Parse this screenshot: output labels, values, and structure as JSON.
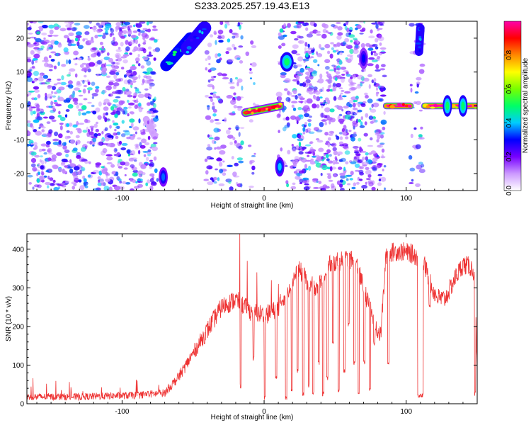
{
  "title": "S233.2025.257.19.43.E13",
  "chart_data": [
    {
      "type": "heatmap",
      "name": "spectrogram",
      "xlabel": "Height of straight line (km)",
      "ylabel": "Frequency (Hz)",
      "xlim": [
        -167,
        150
      ],
      "ylim": [
        -25,
        25
      ],
      "xticks": [
        -100,
        0,
        100
      ],
      "yticks": [
        -20,
        -10,
        0,
        10,
        20
      ],
      "xtick_labels": [
        "-100",
        "0",
        "100"
      ],
      "ytick_labels": [
        "-20",
        "-10",
        "0",
        "10",
        "20"
      ],
      "colorbar": {
        "label": "Normalized spectral amplitude",
        "range": [
          0,
          1
        ],
        "ticks": [
          0.0,
          0.2,
          0.4,
          0.6,
          0.8
        ],
        "tick_labels": [
          "0.0",
          "0.2",
          "0.4",
          "0.6",
          "0.8"
        ],
        "colormap": [
          "#ffffff",
          "#cc99ff",
          "#7700ff",
          "#0000ff",
          "#00ccff",
          "#00ff66",
          "#77ff00",
          "#ffff00",
          "#ff8800",
          "#ff0000",
          "#ff00aa"
        ]
      },
      "noise_regions": [
        {
          "x": [
            -167,
            -75
          ],
          "y": [
            -25,
            25
          ],
          "density": "high"
        },
        {
          "x": [
            -41,
            -15
          ],
          "y": [
            -25,
            25
          ],
          "density": "medium"
        },
        {
          "x": [
            -12,
            -5
          ],
          "y": [
            -25,
            25
          ],
          "density": "low"
        },
        {
          "x": [
            10,
            18
          ],
          "y": [
            -25,
            25
          ],
          "density": "medium"
        },
        {
          "x": [
            20,
            45
          ],
          "y": [
            -25,
            25
          ],
          "density": "high"
        },
        {
          "x": [
            45,
            85
          ],
          "y": [
            -25,
            25
          ],
          "density": "high"
        },
        {
          "x": [
            102,
            108
          ],
          "y": [
            -25,
            25
          ],
          "density": "low"
        },
        {
          "x": [
            108,
            112
          ],
          "y": [
            -25,
            25
          ],
          "density": "medium"
        }
      ],
      "features": [
        {
          "type": "streak",
          "from": [
            -69,
            12
          ],
          "to": [
            -52,
            20
          ],
          "width": 3.5,
          "amplitude": 0.5
        },
        {
          "type": "streak",
          "from": [
            -54,
            17
          ],
          "to": [
            -42,
            23
          ],
          "width": 4,
          "amplitude": 0.45
        },
        {
          "type": "streak",
          "from": [
            -83,
            -4
          ],
          "to": [
            -77,
            -9
          ],
          "width": 2,
          "amplitude": 0.15
        },
        {
          "type": "blob",
          "at": [
            -71,
            -21
          ],
          "size": [
            2,
            1.8
          ],
          "amplitude": 0.35
        },
        {
          "type": "streak",
          "from": [
            -13,
            -2
          ],
          "to": [
            11,
            0
          ],
          "width": 2.6,
          "amplitude": 0.95
        },
        {
          "type": "blob",
          "at": [
            16,
            13
          ],
          "size": [
            3,
            1.8
          ],
          "amplitude": 0.5
        },
        {
          "type": "blob",
          "at": [
            11,
            -18
          ],
          "size": [
            2,
            1.8
          ],
          "amplitude": 0.4
        },
        {
          "type": "blob",
          "at": [
            70,
            14
          ],
          "size": [
            2,
            2
          ],
          "amplitude": 0.3
        },
        {
          "type": "streak",
          "from": [
            86,
            0
          ],
          "to": [
            103,
            0
          ],
          "width": 2,
          "amplitude": 1.0
        },
        {
          "type": "streak",
          "from": [
            113,
            0
          ],
          "to": [
            149,
            0
          ],
          "width": 2,
          "amplitude": 1.0
        },
        {
          "type": "blob",
          "at": [
            129,
            0
          ],
          "size": [
            2,
            2
          ],
          "amplitude": 0.5
        },
        {
          "type": "blob",
          "at": [
            140,
            0
          ],
          "size": [
            2,
            2
          ],
          "amplitude": 0.5
        },
        {
          "type": "streak",
          "from": [
            109,
            16
          ],
          "to": [
            110,
            23
          ],
          "width": 2.5,
          "amplitude": 0.45
        }
      ]
    },
    {
      "type": "line",
      "name": "snr",
      "xlabel": "Height of straight line (km)",
      "ylabel": "SNR (10 * v/v)",
      "xlim": [
        -167,
        150
      ],
      "ylim": [
        0,
        440
      ],
      "xticks": [
        -100,
        0,
        100
      ],
      "yticks": [
        0,
        100,
        200,
        300,
        400
      ],
      "xtick_labels": [
        "-100",
        "0",
        "100"
      ],
      "ytick_labels": [
        "0",
        "100",
        "200",
        "300",
        "400"
      ],
      "color": "#ee3333",
      "x": [
        -167,
        -150,
        -130,
        -110,
        -90,
        -70,
        -60,
        -50,
        -40,
        -30,
        -20,
        -10,
        0,
        5,
        10,
        20,
        25,
        30,
        35,
        40,
        45,
        50,
        55,
        60,
        65,
        70,
        75,
        80,
        82,
        86,
        95,
        103,
        108,
        112,
        118,
        122,
        127,
        130,
        135,
        140,
        145,
        148,
        150
      ],
      "y": [
        18,
        18,
        18,
        20,
        22,
        28,
        70,
        130,
        190,
        250,
        270,
        240,
        230,
        235,
        250,
        320,
        345,
        320,
        300,
        320,
        360,
        365,
        370,
        375,
        360,
        300,
        240,
        190,
        175,
        390,
        395,
        390,
        380,
        370,
        300,
        275,
        270,
        290,
        330,
        360,
        355,
        340,
        85
      ],
      "noise_amplitude": 22,
      "dips": [
        {
          "x": [
            108,
            112
          ],
          "depth_to": 15
        },
        {
          "x": [
            -17,
            -16
          ],
          "depth_to": 40
        },
        {
          "x": [
            -8,
            -7
          ],
          "depth_to": 110
        },
        {
          "x": [
            0,
            1
          ],
          "depth_to": 10
        },
        {
          "x": [
            8,
            9
          ],
          "depth_to": 60
        },
        {
          "x": [
            15,
            16
          ],
          "depth_to": 10
        },
        {
          "x": [
            19,
            20
          ],
          "depth_to": 30
        },
        {
          "x": [
            23,
            24
          ],
          "depth_to": 80
        },
        {
          "x": [
            27,
            28
          ],
          "depth_to": 20
        },
        {
          "x": [
            31,
            32
          ],
          "depth_to": 40
        },
        {
          "x": [
            34,
            35
          ],
          "depth_to": 20
        },
        {
          "x": [
            38,
            39
          ],
          "depth_to": 100
        },
        {
          "x": [
            41,
            42
          ],
          "depth_to": 20
        },
        {
          "x": [
            44,
            45
          ],
          "depth_to": 60
        },
        {
          "x": [
            48,
            49
          ],
          "depth_to": 150
        },
        {
          "x": [
            52,
            53
          ],
          "depth_to": 30
        },
        {
          "x": [
            56,
            57
          ],
          "depth_to": 80
        },
        {
          "x": [
            59,
            60
          ],
          "depth_to": 200
        },
        {
          "x": [
            63,
            64
          ],
          "depth_to": 100
        },
        {
          "x": [
            66,
            67
          ],
          "depth_to": 20
        },
        {
          "x": [
            70,
            71
          ],
          "depth_to": 100
        },
        {
          "x": [
            74,
            75
          ],
          "depth_to": 30
        },
        {
          "x": [
            77,
            78
          ],
          "depth_to": 150
        },
        {
          "x": [
            87,
            88
          ],
          "depth_to": 100
        },
        {
          "x": [
            116,
            117
          ],
          "depth_to": 250
        },
        {
          "x": [
            148,
            149
          ],
          "depth_to": 20
        }
      ],
      "spikes": [
        {
          "x": -17,
          "peak": 440
        },
        {
          "x": -12,
          "peak": 370
        },
        {
          "x": -5,
          "peak": 340
        },
        {
          "x": 5,
          "peak": 320
        },
        {
          "x": 10,
          "peak": 310
        }
      ]
    }
  ]
}
